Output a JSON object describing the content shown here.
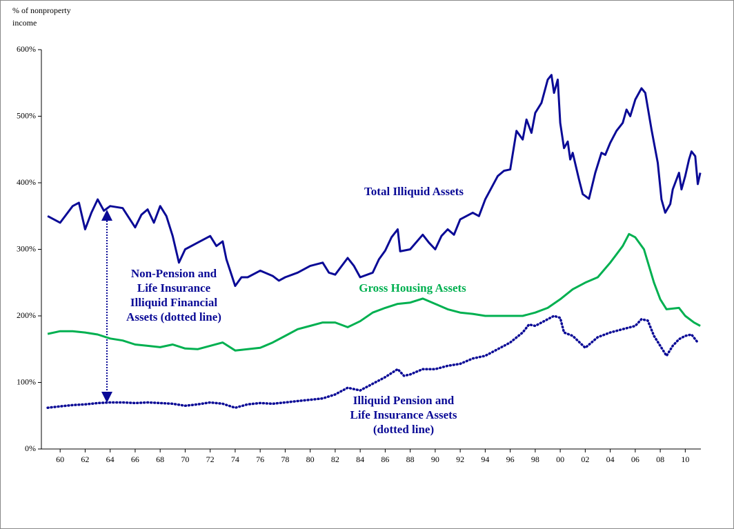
{
  "chart_data": {
    "type": "line",
    "y_label": [
      "% of nonproperty",
      "income"
    ],
    "xlim": [
      1958.5,
      2011.25
    ],
    "ylim": [
      0,
      600
    ],
    "yticks": [
      {
        "value": 0,
        "label": "0%"
      },
      {
        "value": 100,
        "label": "100%"
      },
      {
        "value": 200,
        "label": "200%"
      },
      {
        "value": 300,
        "label": "300%"
      },
      {
        "value": 400,
        "label": "400%"
      },
      {
        "value": 500,
        "label": "500%"
      },
      {
        "value": 600,
        "label": "600%"
      }
    ],
    "xticks": [
      {
        "value": 1960,
        "label": "60"
      },
      {
        "value": 1962,
        "label": "62"
      },
      {
        "value": 1964,
        "label": "64"
      },
      {
        "value": 1966,
        "label": "66"
      },
      {
        "value": 1968,
        "label": "68"
      },
      {
        "value": 1970,
        "label": "70"
      },
      {
        "value": 1972,
        "label": "72"
      },
      {
        "value": 1974,
        "label": "74"
      },
      {
        "value": 1976,
        "label": "76"
      },
      {
        "value": 1978,
        "label": "78"
      },
      {
        "value": 1980,
        "label": "80"
      },
      {
        "value": 1982,
        "label": "82"
      },
      {
        "value": 1984,
        "label": "84"
      },
      {
        "value": 1986,
        "label": "86"
      },
      {
        "value": 1988,
        "label": "88"
      },
      {
        "value": 1990,
        "label": "90"
      },
      {
        "value": 1992,
        "label": "92"
      },
      {
        "value": 1994,
        "label": "94"
      },
      {
        "value": 1996,
        "label": "96"
      },
      {
        "value": 1998,
        "label": "98"
      },
      {
        "value": 2000,
        "label": "00"
      },
      {
        "value": 2002,
        "label": "02"
      },
      {
        "value": 2004,
        "label": "04"
      },
      {
        "value": 2006,
        "label": "06"
      },
      {
        "value": 2008,
        "label": "08"
      },
      {
        "value": 2010,
        "label": "10"
      }
    ],
    "grid": false,
    "series": [
      {
        "name": "Total Illiquid Assets",
        "color": "#0a0a96",
        "style": "solid",
        "x": [
          1959,
          1960,
          1961,
          1961.5,
          1962,
          1962.5,
          1963,
          1963.5,
          1964,
          1965,
          1966,
          1966.5,
          1967,
          1967.5,
          1968,
          1968.5,
          1969,
          1969.5,
          1970,
          1971,
          1972,
          1972.5,
          1973,
          1973.3,
          1974,
          1974.5,
          1975,
          1976,
          1977,
          1977.5,
          1978,
          1979,
          1980,
          1981,
          1981.5,
          1982,
          1983,
          1983.5,
          1984,
          1985,
          1985.5,
          1986,
          1986.5,
          1987,
          1987.2,
          1988,
          1989,
          1989.5,
          1990,
          1990.5,
          1991,
          1991.5,
          1992,
          1993,
          1993.5,
          1994,
          1995,
          1995.5,
          1996,
          1996.5,
          1997,
          1997.3,
          1997.7,
          1998,
          1998.5,
          1999,
          1999.3,
          1999.5,
          1999.8,
          2000,
          2000.3,
          2000.6,
          2000.8,
          2001,
          2001.5,
          2001.8,
          2002.3,
          2002.8,
          2003.3,
          2003.6,
          2004,
          2004.5,
          2005,
          2005.3,
          2005.6,
          2006,
          2006.5,
          2006.8,
          2007.3,
          2007.8,
          2008.1,
          2008.4,
          2008.8,
          2009,
          2009.5,
          2009.7,
          2010,
          2010.3,
          2010.5,
          2010.8,
          2011,
          2011.2
        ],
        "values": [
          350,
          340,
          365,
          370,
          330,
          355,
          375,
          358,
          365,
          362,
          333,
          352,
          360,
          340,
          365,
          350,
          320,
          280,
          300,
          310,
          320,
          305,
          312,
          285,
          245,
          258,
          258,
          268,
          260,
          253,
          258,
          265,
          275,
          280,
          265,
          262,
          287,
          275,
          258,
          265,
          285,
          298,
          318,
          330,
          297,
          300,
          322,
          310,
          300,
          320,
          330,
          322,
          345,
          355,
          350,
          375,
          410,
          418,
          420,
          478,
          465,
          495,
          475,
          505,
          520,
          555,
          562,
          535,
          555,
          490,
          452,
          462,
          435,
          445,
          405,
          383,
          376,
          415,
          445,
          442,
          460,
          478,
          490,
          510,
          500,
          525,
          542,
          535,
          480,
          430,
          375,
          355,
          368,
          390,
          415,
          390,
          410,
          435,
          447,
          440,
          398,
          415
        ]
      },
      {
        "name": "Gross Housing Assets",
        "color": "#00b050",
        "style": "solid",
        "x": [
          1959,
          1960,
          1961,
          1962,
          1963,
          1964,
          1965,
          1966,
          1967,
          1968,
          1969,
          1970,
          1971,
          1972,
          1973,
          1974,
          1975,
          1976,
          1977,
          1978,
          1979,
          1980,
          1981,
          1982,
          1983,
          1984,
          1985,
          1986,
          1987,
          1988,
          1989,
          1990,
          1991,
          1992,
          1993,
          1994,
          1995,
          1996,
          1997,
          1998,
          1999,
          2000,
          2001,
          2002,
          2003,
          2004,
          2005,
          2005.5,
          2006,
          2006.7,
          2007.5,
          2008,
          2008.5,
          2009.5,
          2010,
          2010.7,
          2011.2
        ],
        "values": [
          173,
          177,
          177,
          175,
          172,
          166,
          163,
          157,
          155,
          153,
          157,
          151,
          150,
          155,
          160,
          148,
          150,
          152,
          160,
          170,
          180,
          185,
          190,
          190,
          183,
          192,
          205,
          212,
          218,
          220,
          226,
          218,
          210,
          205,
          203,
          200,
          200,
          200,
          200,
          205,
          212,
          225,
          240,
          250,
          258,
          280,
          305,
          323,
          318,
          300,
          250,
          225,
          210,
          212,
          200,
          190,
          185
        ]
      },
      {
        "name": "Illiquid Pension and Life Insurance Assets",
        "color": "#0a0a96",
        "style": "dotted",
        "x": [
          1959,
          1960,
          1961,
          1962,
          1963,
          1964,
          1965,
          1966,
          1967,
          1968,
          1969,
          1970,
          1971,
          1972,
          1973,
          1974,
          1975,
          1976,
          1977,
          1978,
          1979,
          1980,
          1981,
          1982,
          1983,
          1984,
          1985,
          1986,
          1987,
          1987.5,
          1988,
          1989,
          1990,
          1991,
          1992,
          1993,
          1994,
          1995,
          1996,
          1997,
          1997.5,
          1998,
          1999,
          1999.5,
          2000,
          2000.3,
          2001,
          2002,
          2003,
          2004,
          2005,
          2006,
          2006.5,
          2007,
          2007.5,
          2008.5,
          2009,
          2009.5,
          2010,
          2010.5,
          2011
        ],
        "values": [
          62,
          64,
          66,
          67,
          69,
          70,
          70,
          69,
          70,
          69,
          68,
          65,
          67,
          70,
          68,
          62,
          67,
          69,
          68,
          70,
          72,
          74,
          76,
          82,
          92,
          88,
          98,
          108,
          120,
          110,
          112,
          120,
          120,
          125,
          128,
          136,
          140,
          150,
          160,
          175,
          187,
          185,
          195,
          200,
          197,
          175,
          170,
          152,
          168,
          175,
          180,
          185,
          195,
          193,
          170,
          140,
          155,
          165,
          170,
          172,
          160
        ]
      }
    ],
    "annotations": [
      {
        "lines": [
          "Total Illiquid Assets"
        ],
        "color": "#0a0a96"
      },
      {
        "lines": [
          "Gross Housing Assets"
        ],
        "color": "#00b050"
      },
      {
        "lines": [
          "Non-Pension and",
          "Life Insurance",
          "Illiquid Financial",
          "Assets (dotted line)"
        ],
        "color": "#0a0a96"
      },
      {
        "lines": [
          "Illiquid Pension and",
          "Life Insurance Assets",
          "(dotted line)"
        ],
        "color": "#0a0a96"
      }
    ]
  }
}
